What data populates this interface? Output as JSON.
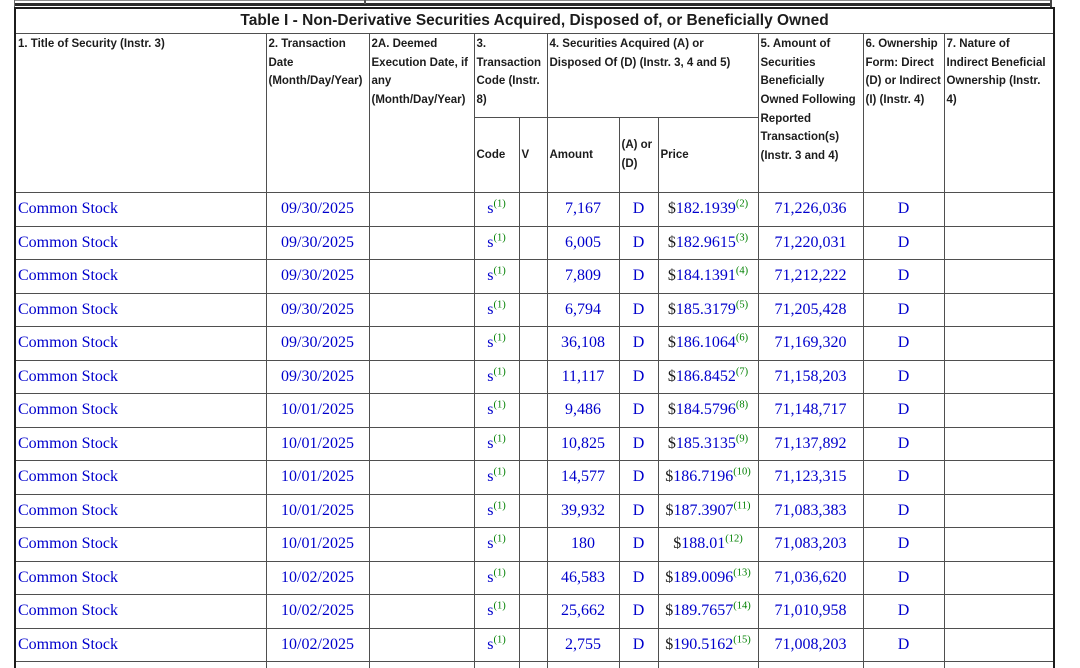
{
  "colors": {
    "link_blue": "#0000cc",
    "footnote_green": "#008000",
    "header_text": "#1c1c1c"
  },
  "table": {
    "title": "Table I - Non-Derivative Securities Acquired, Disposed of, or Beneficially Owned",
    "headers": {
      "col1": "1. Title of Security (Instr. 3)",
      "col2": "2. Transaction Date (Month/Day/Year)",
      "col2a": "2A. Deemed Execution Date, if any (Month/Day/Year)",
      "col3": "3. Transaction Code (Instr. 8)",
      "col4": "4. Securities Acquired (A) or Disposed Of (D) (Instr. 3, 4 and 5)",
      "col5": "5. Amount of Securities Beneficially Owned Following Reported Transaction(s) (Instr. 3 and 4)",
      "col6": "6. Ownership Form: Direct (D) or Indirect (I) (Instr. 4)",
      "col7": "7. Nature of Indirect Beneficial Ownership (Instr. 4)",
      "sub_code": "Code",
      "sub_v": "V",
      "sub_amount": "Amount",
      "sub_a_or_d": "(A) or (D)",
      "sub_price": "Price"
    },
    "labels": {
      "dollar": "$"
    },
    "rows": [
      {
        "title": "Common Stock",
        "date": "09/30/2025",
        "code": "s",
        "code_fn": "(1)",
        "amount": "7,167",
        "a_or_d": "D",
        "price": "182.1939",
        "price_fn": "(2)",
        "owned": "71,226,036",
        "form": "D"
      },
      {
        "title": "Common Stock",
        "date": "09/30/2025",
        "code": "s",
        "code_fn": "(1)",
        "amount": "6,005",
        "a_or_d": "D",
        "price": "182.9615",
        "price_fn": "(3)",
        "owned": "71,220,031",
        "form": "D"
      },
      {
        "title": "Common Stock",
        "date": "09/30/2025",
        "code": "s",
        "code_fn": "(1)",
        "amount": "7,809",
        "a_or_d": "D",
        "price": "184.1391",
        "price_fn": "(4)",
        "owned": "71,212,222",
        "form": "D"
      },
      {
        "title": "Common Stock",
        "date": "09/30/2025",
        "code": "s",
        "code_fn": "(1)",
        "amount": "6,794",
        "a_or_d": "D",
        "price": "185.3179",
        "price_fn": "(5)",
        "owned": "71,205,428",
        "form": "D"
      },
      {
        "title": "Common Stock",
        "date": "09/30/2025",
        "code": "s",
        "code_fn": "(1)",
        "amount": "36,108",
        "a_or_d": "D",
        "price": "186.1064",
        "price_fn": "(6)",
        "owned": "71,169,320",
        "form": "D"
      },
      {
        "title": "Common Stock",
        "date": "09/30/2025",
        "code": "s",
        "code_fn": "(1)",
        "amount": "11,117",
        "a_or_d": "D",
        "price": "186.8452",
        "price_fn": "(7)",
        "owned": "71,158,203",
        "form": "D"
      },
      {
        "title": "Common Stock",
        "date": "10/01/2025",
        "code": "s",
        "code_fn": "(1)",
        "amount": "9,486",
        "a_or_d": "D",
        "price": "184.5796",
        "price_fn": "(8)",
        "owned": "71,148,717",
        "form": "D"
      },
      {
        "title": "Common Stock",
        "date": "10/01/2025",
        "code": "s",
        "code_fn": "(1)",
        "amount": "10,825",
        "a_or_d": "D",
        "price": "185.3135",
        "price_fn": "(9)",
        "owned": "71,137,892",
        "form": "D"
      },
      {
        "title": "Common Stock",
        "date": "10/01/2025",
        "code": "s",
        "code_fn": "(1)",
        "amount": "14,577",
        "a_or_d": "D",
        "price": "186.7196",
        "price_fn": "(10)",
        "owned": "71,123,315",
        "form": "D"
      },
      {
        "title": "Common Stock",
        "date": "10/01/2025",
        "code": "s",
        "code_fn": "(1)",
        "amount": "39,932",
        "a_or_d": "D",
        "price": "187.3907",
        "price_fn": "(11)",
        "owned": "71,083,383",
        "form": "D"
      },
      {
        "title": "Common Stock",
        "date": "10/01/2025",
        "code": "s",
        "code_fn": "(1)",
        "amount": "180",
        "a_or_d": "D",
        "price": "188.01",
        "price_fn": "(12)",
        "owned": "71,083,203",
        "form": "D"
      },
      {
        "title": "Common Stock",
        "date": "10/02/2025",
        "code": "s",
        "code_fn": "(1)",
        "amount": "46,583",
        "a_or_d": "D",
        "price": "189.0096",
        "price_fn": "(13)",
        "owned": "71,036,620",
        "form": "D"
      },
      {
        "title": "Common Stock",
        "date": "10/02/2025",
        "code": "s",
        "code_fn": "(1)",
        "amount": "25,662",
        "a_or_d": "D",
        "price": "189.7657",
        "price_fn": "(14)",
        "owned": "71,010,958",
        "form": "D"
      },
      {
        "title": "Common Stock",
        "date": "10/02/2025",
        "code": "s",
        "code_fn": "(1)",
        "amount": "2,755",
        "a_or_d": "D",
        "price": "190.5162",
        "price_fn": "(15)",
        "owned": "71,008,203",
        "form": "D"
      }
    ]
  }
}
